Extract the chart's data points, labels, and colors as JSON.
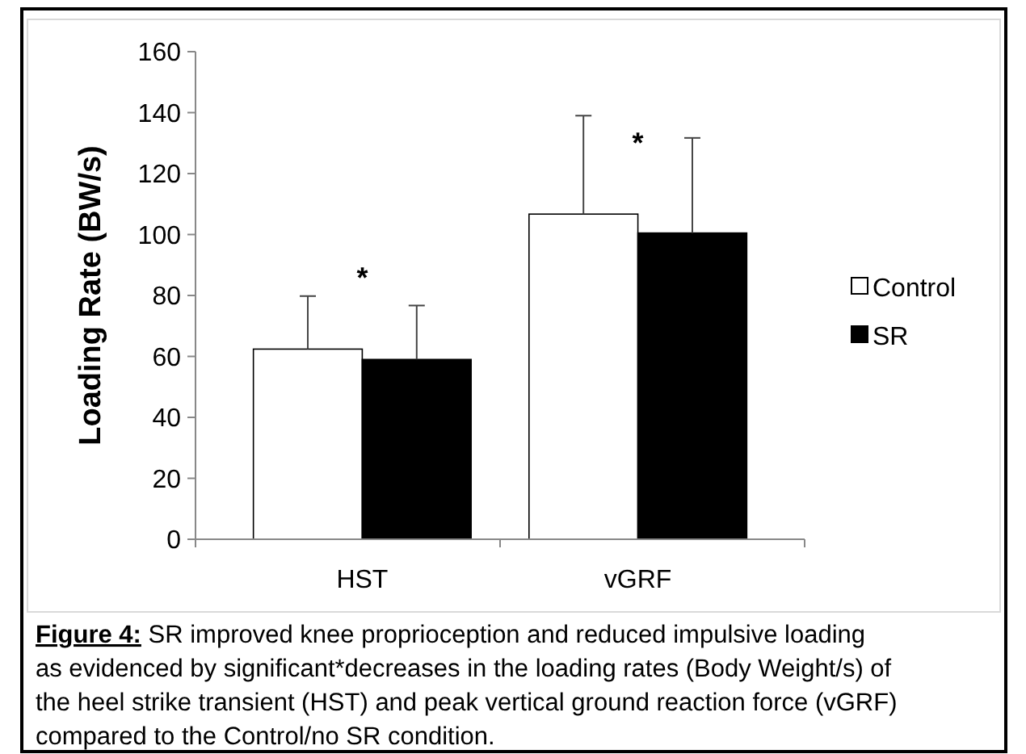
{
  "chart_data": {
    "type": "bar",
    "ylabel": "Loading Rate (BW/s)",
    "categories": [
      "HST",
      "vGRF"
    ],
    "series": [
      {
        "name": "Control",
        "color": "#ffffff",
        "values": [
          62.4,
          106.7
        ],
        "errors": [
          [
            62.4,
            79.8
          ],
          [
            106.7,
            139
          ]
        ]
      },
      {
        "name": "SR",
        "color": "#000000",
        "values": [
          59,
          100.5
        ],
        "errors": [
          [
            59,
            76.7
          ],
          [
            100.5,
            131.7
          ]
        ]
      }
    ],
    "ylim": [
      0,
      160
    ],
    "yticks": [
      0,
      20,
      40,
      60,
      80,
      100,
      120,
      140,
      160
    ],
    "grid": false,
    "legend": "right",
    "annotations": [
      "*",
      "*",
      "Figure 4: SR improved knee proprioception and reduced impulsive loading as evidenced by significant*decreases in the loading rates (Body Weight/s) of the  heel strike transient (HST) and peak vertical ground reaction force (vGRF) compared to the Control/no SR condition."
    ]
  }
}
